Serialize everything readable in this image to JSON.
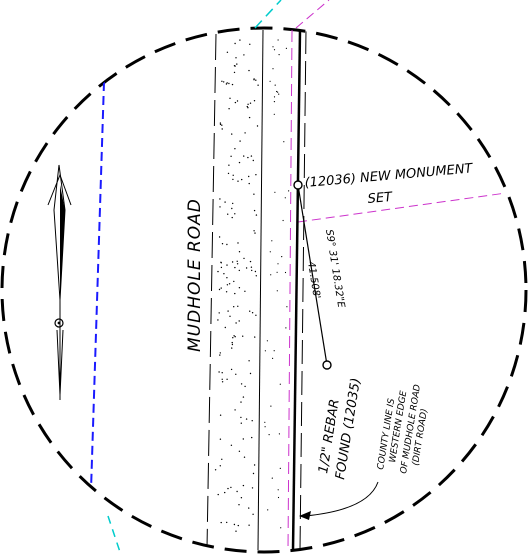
{
  "labels": {
    "road_name": "MUDHOLE ROAD",
    "new_monument_line1": "(12036)  NEW MONUMENT",
    "new_monument_line2": "SET",
    "bearing": "S9° 31' 18.32\"E",
    "distance": "41.508'",
    "rebar_line1": "1/2\" REBAR",
    "rebar_line2": "FOUND (12035)",
    "county_note_line1": "COUNTY LINE IS",
    "county_note_line2": "WESTERN EDGE",
    "county_note_line3": "OF MUDHOLE ROAD",
    "county_note_line4": "(DIRT ROAD)"
  },
  "colors": {
    "linework": "#000000",
    "easement_line": "#cc33cc",
    "boundary_line": "#1a1aff",
    "fence_line": "#00cccc",
    "background": "#ffffff"
  },
  "icons": {
    "north_arrow": "north-arrow-icon",
    "monument": "monument-circle-icon"
  }
}
